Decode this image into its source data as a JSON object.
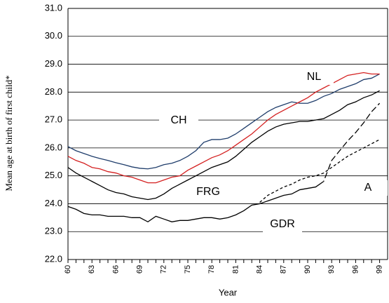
{
  "chart_data": {
    "type": "line",
    "y_label": "Mean age at birth of first child*",
    "x_label": "Year",
    "xlim": [
      60,
      100
    ],
    "xticks": [
      60,
      63,
      66,
      69,
      72,
      75,
      78,
      81,
      84,
      87,
      90,
      93,
      96,
      99
    ],
    "ylim": [
      22,
      31
    ],
    "yticks": [
      {
        "value": 22,
        "label": "22.0"
      },
      {
        "value": 23,
        "label": "23.0"
      },
      {
        "value": 24,
        "label": "24.0"
      },
      {
        "value": 25,
        "label": "25.0"
      },
      {
        "value": 26,
        "label": "26.0"
      },
      {
        "value": 27,
        "label": "27.0"
      },
      {
        "value": 28,
        "label": "28.0"
      },
      {
        "value": 29,
        "label": "29.0"
      },
      {
        "value": 30,
        "label": "30.0"
      },
      {
        "value": 31,
        "label": "31.0"
      }
    ],
    "grid": true,
    "x": [
      60,
      61,
      62,
      63,
      64,
      65,
      66,
      67,
      68,
      69,
      70,
      71,
      72,
      73,
      74,
      75,
      76,
      77,
      78,
      79,
      80,
      81,
      82,
      83,
      84,
      85,
      86,
      87,
      88,
      89,
      90,
      91,
      92,
      93,
      94,
      95,
      96,
      97,
      98,
      99
    ],
    "series": [
      {
        "name": "CH",
        "color": "#1f3d6b",
        "values": [
          26.05,
          25.9,
          25.8,
          25.7,
          25.62,
          25.55,
          25.47,
          25.4,
          25.32,
          25.27,
          25.25,
          25.3,
          25.4,
          25.45,
          25.55,
          25.7,
          25.9,
          26.2,
          26.3,
          26.3,
          26.35,
          26.5,
          26.7,
          26.9,
          27.1,
          27.3,
          27.45,
          27.55,
          27.65,
          27.6,
          27.6,
          27.7,
          27.85,
          27.95,
          28.1,
          28.2,
          28.3,
          28.45,
          28.5,
          28.65
        ]
      },
      {
        "name": "NL",
        "color": "#d42020",
        "values": [
          25.7,
          25.55,
          25.45,
          25.3,
          25.25,
          25.15,
          25.1,
          25.0,
          24.95,
          24.85,
          24.75,
          24.75,
          24.85,
          24.95,
          25.0,
          25.2,
          25.35,
          25.5,
          25.65,
          25.75,
          25.9,
          26.1,
          26.3,
          26.5,
          26.75,
          27.0,
          27.2,
          27.35,
          27.5,
          27.65,
          27.8,
          28.0,
          28.15,
          28.3,
          28.45,
          28.6,
          28.65,
          28.7,
          28.65,
          28.65
        ]
      },
      {
        "name": "FRG",
        "color": "#000000",
        "values": [
          25.3,
          25.1,
          24.95,
          24.8,
          24.65,
          24.5,
          24.4,
          24.35,
          24.25,
          24.2,
          24.15,
          24.2,
          24.35,
          24.55,
          24.7,
          24.85,
          25.0,
          25.15,
          25.3,
          25.4,
          25.5,
          25.7,
          25.95,
          26.2,
          26.4,
          26.6,
          26.75,
          26.85,
          26.9,
          26.95,
          26.95,
          27.0,
          27.05,
          27.2,
          27.35,
          27.55,
          27.65,
          27.8,
          27.9,
          28.05
        ]
      },
      {
        "name": "GDR",
        "color": "#000000",
        "dash_from_x": 92,
        "values": [
          23.9,
          23.8,
          23.65,
          23.6,
          23.6,
          23.55,
          23.55,
          23.55,
          23.5,
          23.5,
          23.35,
          23.55,
          23.45,
          23.35,
          23.4,
          23.4,
          23.45,
          23.5,
          23.5,
          23.45,
          23.5,
          23.6,
          23.75,
          23.95,
          24.0,
          24.1,
          24.2,
          24.3,
          24.35,
          24.5,
          24.55,
          24.6,
          24.8,
          25.55,
          25.9,
          26.25,
          26.55,
          26.9,
          27.3,
          27.6
        ]
      },
      {
        "name": "A",
        "color": "#000000",
        "dashed": true,
        "values": [
          null,
          null,
          null,
          null,
          null,
          null,
          null,
          null,
          null,
          null,
          null,
          null,
          null,
          null,
          null,
          null,
          null,
          null,
          null,
          null,
          null,
          null,
          null,
          null,
          24.05,
          24.3,
          24.45,
          24.6,
          24.7,
          24.85,
          24.95,
          25.0,
          25.1,
          25.3,
          25.5,
          25.7,
          25.85,
          26.0,
          26.15,
          26.3
        ]
      }
    ]
  }
}
